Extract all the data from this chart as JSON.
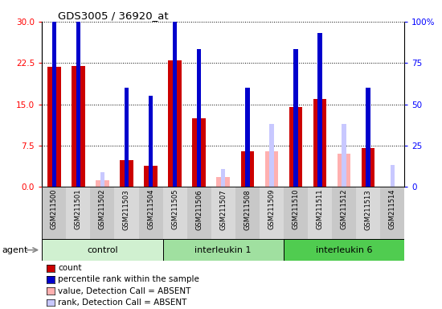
{
  "title": "GDS3005 / 36920_at",
  "samples": [
    "GSM211500",
    "GSM211501",
    "GSM211502",
    "GSM211503",
    "GSM211504",
    "GSM211505",
    "GSM211506",
    "GSM211507",
    "GSM211508",
    "GSM211509",
    "GSM211510",
    "GSM211511",
    "GSM211512",
    "GSM211513",
    "GSM211514"
  ],
  "groups": [
    {
      "label": "control",
      "color": "#d0f0d0",
      "start": 0,
      "end": 5
    },
    {
      "label": "interleukin 1",
      "color": "#a0e0a0",
      "start": 5,
      "end": 10
    },
    {
      "label": "interleukin 6",
      "color": "#50cc50",
      "start": 10,
      "end": 15
    }
  ],
  "count_values": [
    21.8,
    22.0,
    0.0,
    4.8,
    3.8,
    23.0,
    12.5,
    0.0,
    6.5,
    0.0,
    14.5,
    16.0,
    0.0,
    7.0,
    0.0
  ],
  "rank_values": [
    33.0,
    33.0,
    0.0,
    18.0,
    16.5,
    35.0,
    25.0,
    0.0,
    18.0,
    0.0,
    25.0,
    28.0,
    0.0,
    18.0,
    0.0
  ],
  "absent_count_values": [
    0.0,
    0.0,
    1.2,
    0.0,
    0.0,
    0.0,
    0.0,
    1.8,
    0.0,
    6.5,
    0.0,
    0.0,
    6.0,
    0.0,
    0.0
  ],
  "absent_rank_values": [
    0.0,
    0.0,
    2.7,
    0.0,
    0.0,
    1.5,
    0.0,
    3.3,
    0.0,
    11.5,
    0.0,
    0.0,
    11.5,
    0.0,
    4.0
  ],
  "ylim_left": [
    0,
    30
  ],
  "ylim_right": [
    0,
    100
  ],
  "yticks_left": [
    0,
    7.5,
    15,
    22.5,
    30
  ],
  "yticks_right": [
    0,
    25,
    50,
    75,
    100
  ],
  "count_color": "#cc0000",
  "rank_color": "#0000cc",
  "absent_count_color": "#ffb0b0",
  "absent_rank_color": "#c8c8ff",
  "bar_width": 0.55,
  "rank_bar_width": 0.18,
  "legend_items": [
    {
      "color": "#cc0000",
      "label": "count"
    },
    {
      "color": "#0000cc",
      "label": "percentile rank within the sample"
    },
    {
      "color": "#ffb0b0",
      "label": "value, Detection Call = ABSENT"
    },
    {
      "color": "#c8c8ff",
      "label": "rank, Detection Call = ABSENT"
    }
  ]
}
